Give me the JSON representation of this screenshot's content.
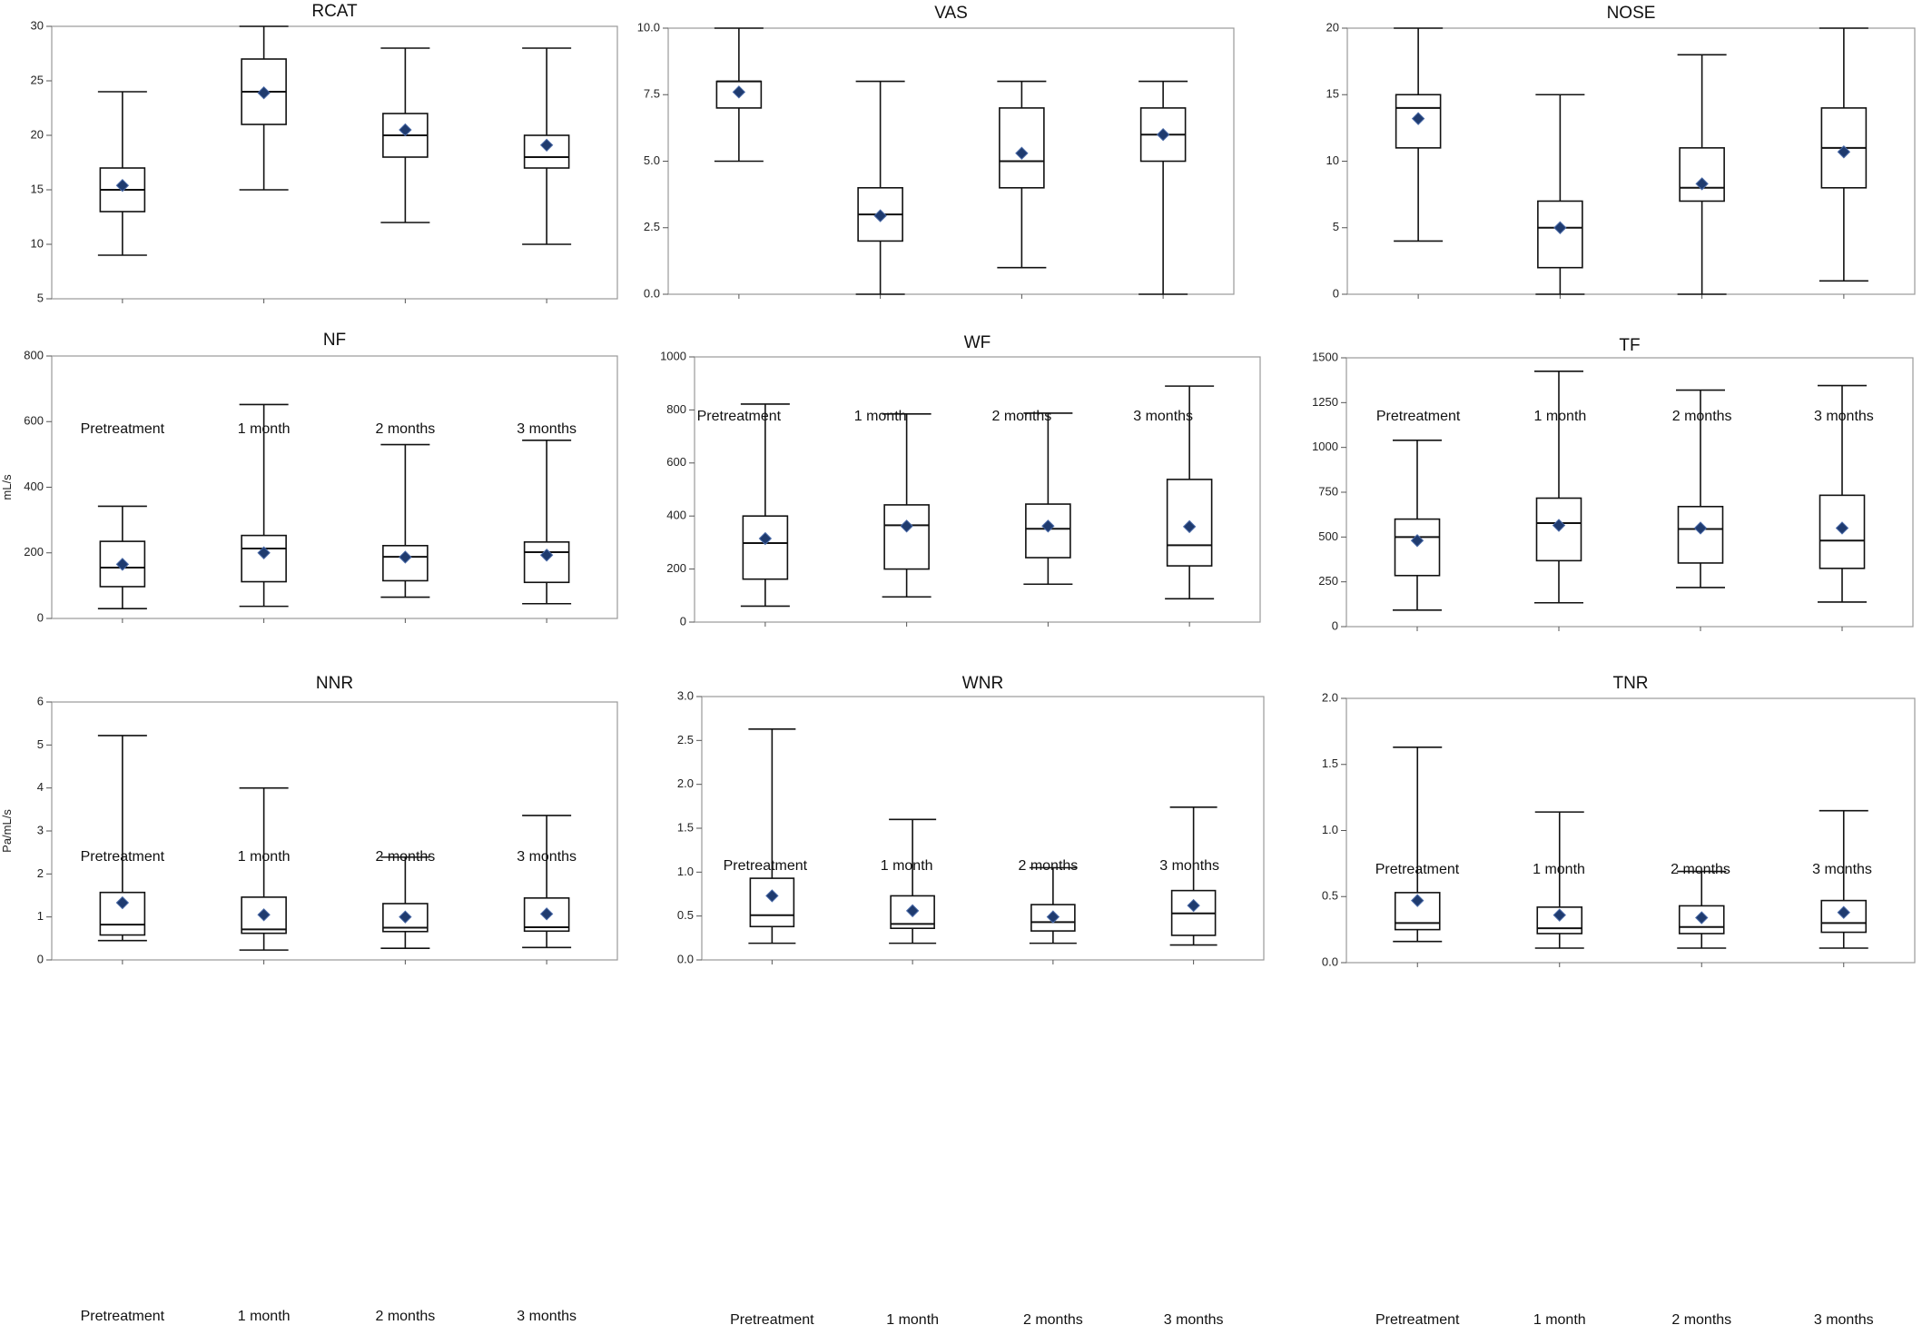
{
  "chart_data": [
    {
      "type": "box",
      "title": "RCAT",
      "ylabel": "",
      "ylim": [
        5,
        30
      ],
      "yticks": [
        5,
        10,
        15,
        20,
        25,
        30
      ],
      "categories": [
        "Pretreatment",
        "1 month",
        "2 months",
        "3 months"
      ],
      "boxes": [
        {
          "min": 9,
          "q1": 13,
          "median": 15,
          "q3": 17,
          "max": 24,
          "mean": 15.4
        },
        {
          "min": 15,
          "q1": 21,
          "median": 24,
          "q3": 27,
          "max": 30,
          "mean": 23.9
        },
        {
          "min": 12,
          "q1": 18,
          "median": 20,
          "q3": 22,
          "max": 28,
          "mean": 20.5
        },
        {
          "min": 10,
          "q1": 17,
          "median": 18,
          "q3": 20,
          "max": 28,
          "mean": 19.1
        }
      ]
    },
    {
      "type": "box",
      "title": "VAS",
      "ylabel": "",
      "ylim": [
        0,
        10
      ],
      "yticks": [
        "0.0",
        "2.5",
        "5.0",
        "7.5",
        "10.0"
      ],
      "categories": [
        "Pretreatment",
        "1 month",
        "2 months",
        "3 months"
      ],
      "boxes": [
        {
          "min": 5,
          "q1": 7,
          "median": 8,
          "q3": 8,
          "max": 10,
          "mean": 7.6
        },
        {
          "min": 0,
          "q1": 2,
          "median": 3,
          "q3": 4,
          "max": 8,
          "mean": 2.95
        },
        {
          "min": 1,
          "q1": 4,
          "median": 5,
          "q3": 7,
          "max": 8,
          "mean": 5.3
        },
        {
          "min": 0,
          "q1": 5,
          "median": 6,
          "q3": 7,
          "max": 8,
          "mean": 6.0
        }
      ]
    },
    {
      "type": "box",
      "title": "NOSE",
      "ylabel": "",
      "ylim": [
        0,
        20
      ],
      "yticks": [
        0,
        5,
        10,
        15,
        20
      ],
      "categories": [
        "Pretreatment",
        "1 month",
        "2 months",
        "3 months"
      ],
      "boxes": [
        {
          "min": 4,
          "q1": 11,
          "median": 14,
          "q3": 15,
          "max": 20,
          "mean": 13.2
        },
        {
          "min": 0,
          "q1": 2,
          "median": 5,
          "q3": 7,
          "max": 15,
          "mean": 5.0
        },
        {
          "min": 0,
          "q1": 7,
          "median": 8,
          "q3": 11,
          "max": 18,
          "mean": 8.3
        },
        {
          "min": 1,
          "q1": 8,
          "median": 11,
          "q3": 14,
          "max": 20,
          "mean": 10.7
        }
      ]
    },
    {
      "type": "box",
      "title": "NF",
      "ylabel": "mL/s",
      "ylim": [
        0,
        800
      ],
      "yticks": [
        0,
        200,
        400,
        600,
        800
      ],
      "categories": [
        "Pretreatment",
        "1 month",
        "2 months",
        "3 months"
      ],
      "boxes": [
        {
          "min": 30,
          "q1": 97,
          "median": 155,
          "q3": 235,
          "max": 342,
          "mean": 165
        },
        {
          "min": 37,
          "q1": 112,
          "median": 213,
          "q3": 253,
          "max": 652,
          "mean": 200
        },
        {
          "min": 65,
          "q1": 115,
          "median": 188,
          "q3": 222,
          "max": 530,
          "mean": 187
        },
        {
          "min": 45,
          "q1": 110,
          "median": 202,
          "q3": 233,
          "max": 543,
          "mean": 193
        }
      ]
    },
    {
      "type": "box",
      "title": "WF",
      "ylabel": "",
      "ylim": [
        0,
        1000
      ],
      "yticks": [
        0,
        200,
        400,
        600,
        800,
        1000
      ],
      "categories": [
        "Pretreatment",
        "1 month",
        "2 months",
        "3 months"
      ],
      "boxes": [
        {
          "min": 60,
          "q1": 162,
          "median": 298,
          "q3": 400,
          "max": 822,
          "mean": 315
        },
        {
          "min": 95,
          "q1": 200,
          "median": 365,
          "q3": 442,
          "max": 785,
          "mean": 362
        },
        {
          "min": 143,
          "q1": 243,
          "median": 352,
          "q3": 445,
          "max": 788,
          "mean": 362
        },
        {
          "min": 88,
          "q1": 212,
          "median": 290,
          "q3": 538,
          "max": 890,
          "mean": 360
        }
      ]
    },
    {
      "type": "box",
      "title": "TF",
      "ylabel": "",
      "ylim": [
        0,
        1500
      ],
      "yticks": [
        0,
        250,
        500,
        750,
        1000,
        1250,
        1500
      ],
      "categories": [
        "Pretreatment",
        "1 month",
        "2 months",
        "3 months"
      ],
      "boxes": [
        {
          "min": 92,
          "q1": 285,
          "median": 500,
          "q3": 600,
          "max": 1040,
          "mean": 480
        },
        {
          "min": 133,
          "q1": 368,
          "median": 578,
          "q3": 717,
          "max": 1425,
          "mean": 565
        },
        {
          "min": 218,
          "q1": 355,
          "median": 545,
          "q3": 670,
          "max": 1320,
          "mean": 550
        },
        {
          "min": 137,
          "q1": 325,
          "median": 480,
          "q3": 733,
          "max": 1345,
          "mean": 550
        }
      ]
    },
    {
      "type": "box",
      "title": "NNR",
      "ylabel": "Pa/mL/s",
      "ylim": [
        0,
        6
      ],
      "yticks": [
        0,
        1,
        2,
        3,
        4,
        5,
        6
      ],
      "categories": [
        "Pretreatment",
        "1 month",
        "2 months",
        "3 months"
      ],
      "boxes": [
        {
          "min": 0.45,
          "q1": 0.58,
          "median": 0.82,
          "q3": 1.57,
          "max": 5.22,
          "mean": 1.33
        },
        {
          "min": 0.23,
          "q1": 0.62,
          "median": 0.71,
          "q3": 1.46,
          "max": 4.0,
          "mean": 1.05
        },
        {
          "min": 0.27,
          "q1": 0.66,
          "median": 0.75,
          "q3": 1.31,
          "max": 2.39,
          "mean": 1.0
        },
        {
          "min": 0.29,
          "q1": 0.67,
          "median": 0.76,
          "q3": 1.44,
          "max": 3.36,
          "mean": 1.07
        }
      ]
    },
    {
      "type": "box",
      "title": "WNR",
      "ylabel": "",
      "ylim": [
        0,
        3
      ],
      "yticks": [
        "0.0",
        "0.5",
        "1.0",
        "1.5",
        "2.0",
        "2.5",
        "3.0"
      ],
      "categories": [
        "Pretreatment",
        "1 month",
        "2 months",
        "3 months"
      ],
      "boxes": [
        {
          "min": 0.19,
          "q1": 0.38,
          "median": 0.51,
          "q3": 0.93,
          "max": 2.63,
          "mean": 0.73
        },
        {
          "min": 0.19,
          "q1": 0.36,
          "median": 0.41,
          "q3": 0.73,
          "max": 1.6,
          "mean": 0.56
        },
        {
          "min": 0.19,
          "q1": 0.33,
          "median": 0.43,
          "q3": 0.63,
          "max": 1.05,
          "mean": 0.49
        },
        {
          "min": 0.17,
          "q1": 0.28,
          "median": 0.53,
          "q3": 0.79,
          "max": 1.74,
          "mean": 0.62
        }
      ]
    },
    {
      "type": "box",
      "title": "TNR",
      "ylabel": "",
      "ylim": [
        0,
        2
      ],
      "yticks": [
        "0.0",
        "0.5",
        "1.0",
        "1.5",
        "2.0"
      ],
      "categories": [
        "Pretreatment",
        "1 month",
        "2 months",
        "3 months"
      ],
      "boxes": [
        {
          "min": 0.16,
          "q1": 0.25,
          "median": 0.3,
          "q3": 0.53,
          "max": 1.63,
          "mean": 0.47
        },
        {
          "min": 0.11,
          "q1": 0.22,
          "median": 0.26,
          "q3": 0.42,
          "max": 1.14,
          "mean": 0.36
        },
        {
          "min": 0.11,
          "q1": 0.22,
          "median": 0.27,
          "q3": 0.43,
          "max": 0.69,
          "mean": 0.34
        },
        {
          "min": 0.11,
          "q1": 0.23,
          "median": 0.3,
          "q3": 0.47,
          "max": 1.15,
          "mean": 0.38
        }
      ]
    }
  ]
}
